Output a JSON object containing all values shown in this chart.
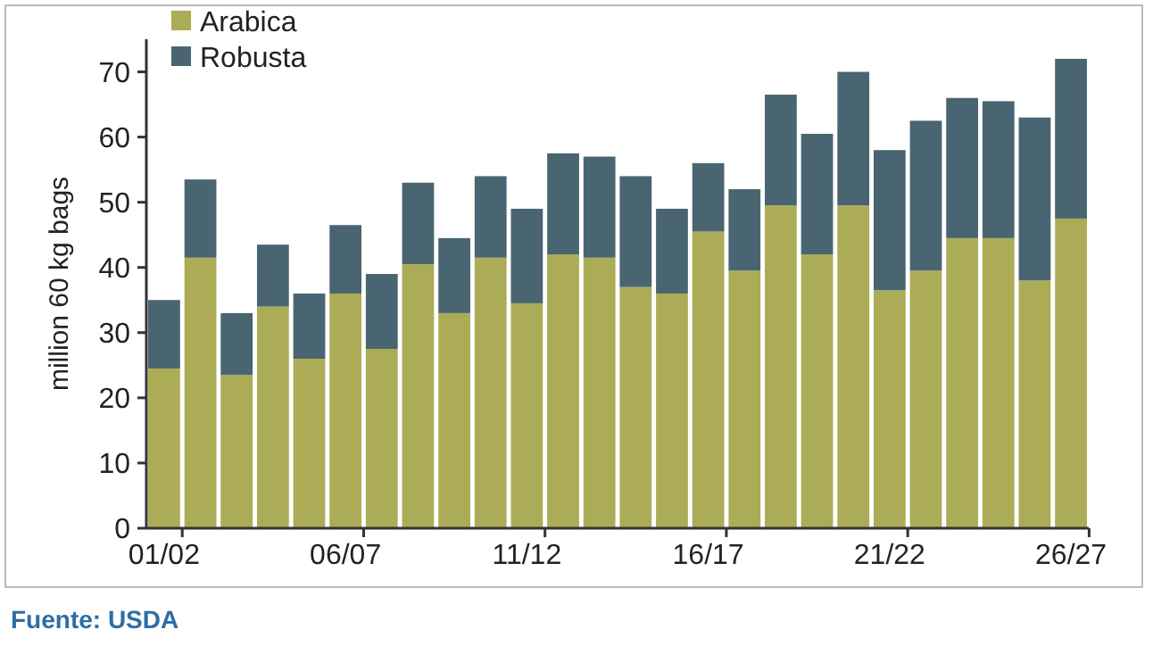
{
  "chart_data": {
    "type": "bar",
    "stacked": true,
    "ylabel": "million 60 kg bags",
    "categories": [
      "01/02",
      null,
      null,
      null,
      null,
      "06/07",
      null,
      null,
      null,
      null,
      "11/12",
      null,
      null,
      null,
      null,
      "16/17",
      null,
      null,
      null,
      null,
      "21/22",
      null,
      null,
      null,
      null,
      "26/27"
    ],
    "series": [
      {
        "name": "Arabica",
        "color": "#acac56",
        "values": [
          24.5,
          41.5,
          23.5,
          34,
          26,
          36,
          27.5,
          40.5,
          33,
          41.5,
          34.5,
          42,
          41.5,
          37,
          36,
          45.5,
          39.5,
          49.5,
          42,
          49.5,
          36.5,
          39.5,
          44.5,
          44.5,
          38,
          47.5
        ]
      },
      {
        "name": "Robusta",
        "color": "#4a6572",
        "values": [
          10.5,
          12,
          9.5,
          9.5,
          10,
          10.5,
          11.5,
          12.5,
          11.5,
          12.5,
          14.5,
          15.5,
          15.5,
          17,
          13,
          10.5,
          12.5,
          17,
          18.5,
          20.5,
          21.5,
          23,
          21.5,
          21,
          25,
          24.5
        ]
      }
    ],
    "ylim": [
      0,
      75
    ],
    "yticks": [
      0,
      10,
      20,
      30,
      40,
      50,
      60,
      70
    ],
    "grid": false,
    "legend": "top left",
    "annotations": [
      "Fuente: USDA"
    ]
  }
}
